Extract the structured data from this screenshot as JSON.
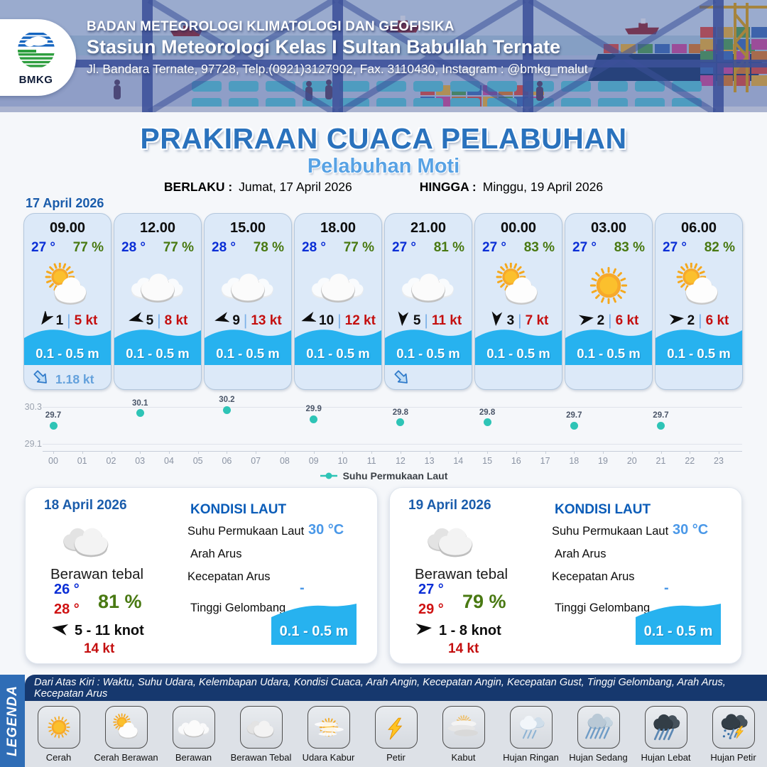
{
  "header": {
    "agency": "BADAN METEOROLOGI KLIMATOLOGI DAN GEOFISIKA",
    "station": "Stasiun Meteorologi Kelas I Sultan Babullah Ternate",
    "address": "Jl. Bandara Ternate, 97728, Telp.(0921)3127902, Fax. 3110430, Instagram : @bmkg_malut",
    "logo_text": "BMKG"
  },
  "title": "PRAKIRAAN CUACA PELABUHAN",
  "subtitle": "Pelabuhan Moti",
  "validity": {
    "berlaku_label": "BERLAKU :",
    "berlaku_value": "Jumat, 17 April 2026",
    "hingga_label": "HINGGA :",
    "hingga_value": "Minggu, 19 April 2026"
  },
  "hourly": {
    "date": "17 April 2026",
    "cards": [
      {
        "time": "09.00",
        "temp": "27 °",
        "humidity": "77 %",
        "icon": "cerah-berawan",
        "wind_speed": "1",
        "wind_dir_deg": 215,
        "gust": "5 kt",
        "wave": "0.1 - 0.5 m",
        "current_arrow": true,
        "current_speed": "1.18 kt"
      },
      {
        "time": "12.00",
        "temp": "28 °",
        "humidity": "77 %",
        "icon": "berawan",
        "wind_speed": "5",
        "wind_dir_deg": 255,
        "gust": "8 kt",
        "wave": "0.1 - 0.5 m"
      },
      {
        "time": "15.00",
        "temp": "28 °",
        "humidity": "78 %",
        "icon": "berawan",
        "wind_speed": "9",
        "wind_dir_deg": 255,
        "gust": "13 kt",
        "wave": "0.1 - 0.5 m"
      },
      {
        "time": "18.00",
        "temp": "28 °",
        "humidity": "77 %",
        "icon": "berawan",
        "wind_speed": "10",
        "wind_dir_deg": 252,
        "gust": "12 kt",
        "wave": "0.1 - 0.5 m"
      },
      {
        "time": "21.00",
        "temp": "27 °",
        "humidity": "81 %",
        "icon": "berawan",
        "wind_speed": "5",
        "wind_dir_deg": 185,
        "gust": "11 kt",
        "wave": "0.1 - 0.5 m",
        "current_arrow": true
      },
      {
        "time": "00.00",
        "temp": "27 °",
        "humidity": "83 %",
        "icon": "cerah-berawan",
        "wind_speed": "3",
        "wind_dir_deg": 185,
        "gust": "7 kt",
        "wave": "0.1 - 0.5 m"
      },
      {
        "time": "03.00",
        "temp": "27 °",
        "humidity": "83 %",
        "icon": "cerah",
        "wind_speed": "2",
        "wind_dir_deg": 80,
        "gust": "6 kt",
        "wave": "0.1 - 0.5 m"
      },
      {
        "time": "06.00",
        "temp": "27 °",
        "humidity": "82 %",
        "icon": "cerah-berawan",
        "wind_speed": "2",
        "wind_dir_deg": 85,
        "gust": "6 kt",
        "wave": "0.1 - 0.5 m"
      }
    ]
  },
  "chart_data": {
    "type": "scatter",
    "title": "",
    "x": [
      0,
      3,
      6,
      9,
      12,
      15,
      18,
      21
    ],
    "values": [
      29.7,
      30.1,
      30.2,
      29.9,
      29.8,
      29.8,
      29.7,
      29.7
    ],
    "point_labels": [
      "29.7",
      "30.1",
      "30.2",
      "29.9",
      "29.8",
      "29.8",
      "29.7",
      "29.7"
    ],
    "x_ticks": [
      "00",
      "01",
      "02",
      "03",
      "04",
      "05",
      "06",
      "07",
      "08",
      "09",
      "10",
      "11",
      "12",
      "13",
      "14",
      "15",
      "16",
      "17",
      "18",
      "19",
      "20",
      "21",
      "22",
      "23"
    ],
    "y_ticks": [
      "30.3",
      "29.1"
    ],
    "ylim": [
      29.1,
      30.3
    ],
    "xlabel": "",
    "ylabel": "",
    "grid": true,
    "legend": "Suhu Permukaan Laut",
    "legend_position": "bottom",
    "series_color": "#2ec4b6"
  },
  "daily": [
    {
      "date": "18 April 2026",
      "icon": "berawan-tebal",
      "condition": "Berawan tebal",
      "temp_min": "26 °",
      "temp_max": "28 °",
      "humidity": "81 %",
      "wind_dir_deg": 280,
      "wind_range": "5  - 11 knot",
      "gust": "14 kt",
      "sea": {
        "heading": "KONDISI LAUT",
        "sst_label": "Suhu Permukaan Laut",
        "sst_value": "30 °C",
        "arah_arus_label": "Arah Arus",
        "arah_arus_value": "",
        "kecepatan_arus_label": "Kecepatan Arus",
        "kecepatan_arus_value": "-",
        "tinggi_gelombang_label": "Tinggi Gelombang",
        "wave": "0.1 - 0.5 m"
      }
    },
    {
      "date": "19 April 2026",
      "icon": "berawan-tebal",
      "condition": "Berawan tebal",
      "temp_min": "27 °",
      "temp_max": "29 °",
      "humidity": "79 %",
      "wind_dir_deg": 85,
      "wind_range": "1  - 8 knot",
      "gust": "14 kt",
      "sea": {
        "heading": "KONDISI LAUT",
        "sst_label": "Suhu Permukaan Laut",
        "sst_value": "30 °C",
        "arah_arus_label": "Arah Arus",
        "arah_arus_value": "",
        "kecepatan_arus_label": "Kecepatan Arus",
        "kecepatan_arus_value": "-",
        "tinggi_gelombang_label": "Tinggi Gelombang",
        "wave": "0.1 - 0.5 m"
      }
    }
  ],
  "legend": {
    "sidebar": "LEGENDA",
    "caption": "Dari Atas Kiri : Waktu, Suhu Udara, Kelembapan Udara, Kondisi Cuaca, Arah Angin, Kecepatan Angin, Kecepatan Gust, Tinggi Gelombang, Arah Arus, Kecepatan Arus",
    "items": [
      {
        "label": "Cerah",
        "icon": "cerah"
      },
      {
        "label": "Cerah Berawan",
        "icon": "cerah-berawan"
      },
      {
        "label": "Berawan",
        "icon": "berawan"
      },
      {
        "label": "Berawan Tebal",
        "icon": "berawan-tebal"
      },
      {
        "label": "Udara Kabur",
        "icon": "udara-kabur"
      },
      {
        "label": "Petir",
        "icon": "petir"
      },
      {
        "label": "Kabut",
        "icon": "kabut"
      },
      {
        "label": "Hujan Ringan",
        "icon": "hujan-ringan"
      },
      {
        "label": "Hujan Sedang",
        "icon": "hujan-sedang"
      },
      {
        "label": "Hujan Lebat",
        "icon": "hujan-lebat"
      },
      {
        "label": "Hujan Petir",
        "icon": "hujan-petir"
      }
    ]
  },
  "colors": {
    "accent_blue": "#2a72bd",
    "subtitle_blue": "#58a2e4",
    "temp_blue": "#0a2ed6",
    "humidity_green": "#497912",
    "gust_red": "#c40f0f",
    "wave_cyan": "#27b2ef",
    "sst_teal": "#2ec4b6",
    "current_blue": "#64a1dc",
    "legend_navy": "#16386e",
    "legend_bar_blue": "#2f6db6",
    "date_blue": "#1a5cab"
  }
}
